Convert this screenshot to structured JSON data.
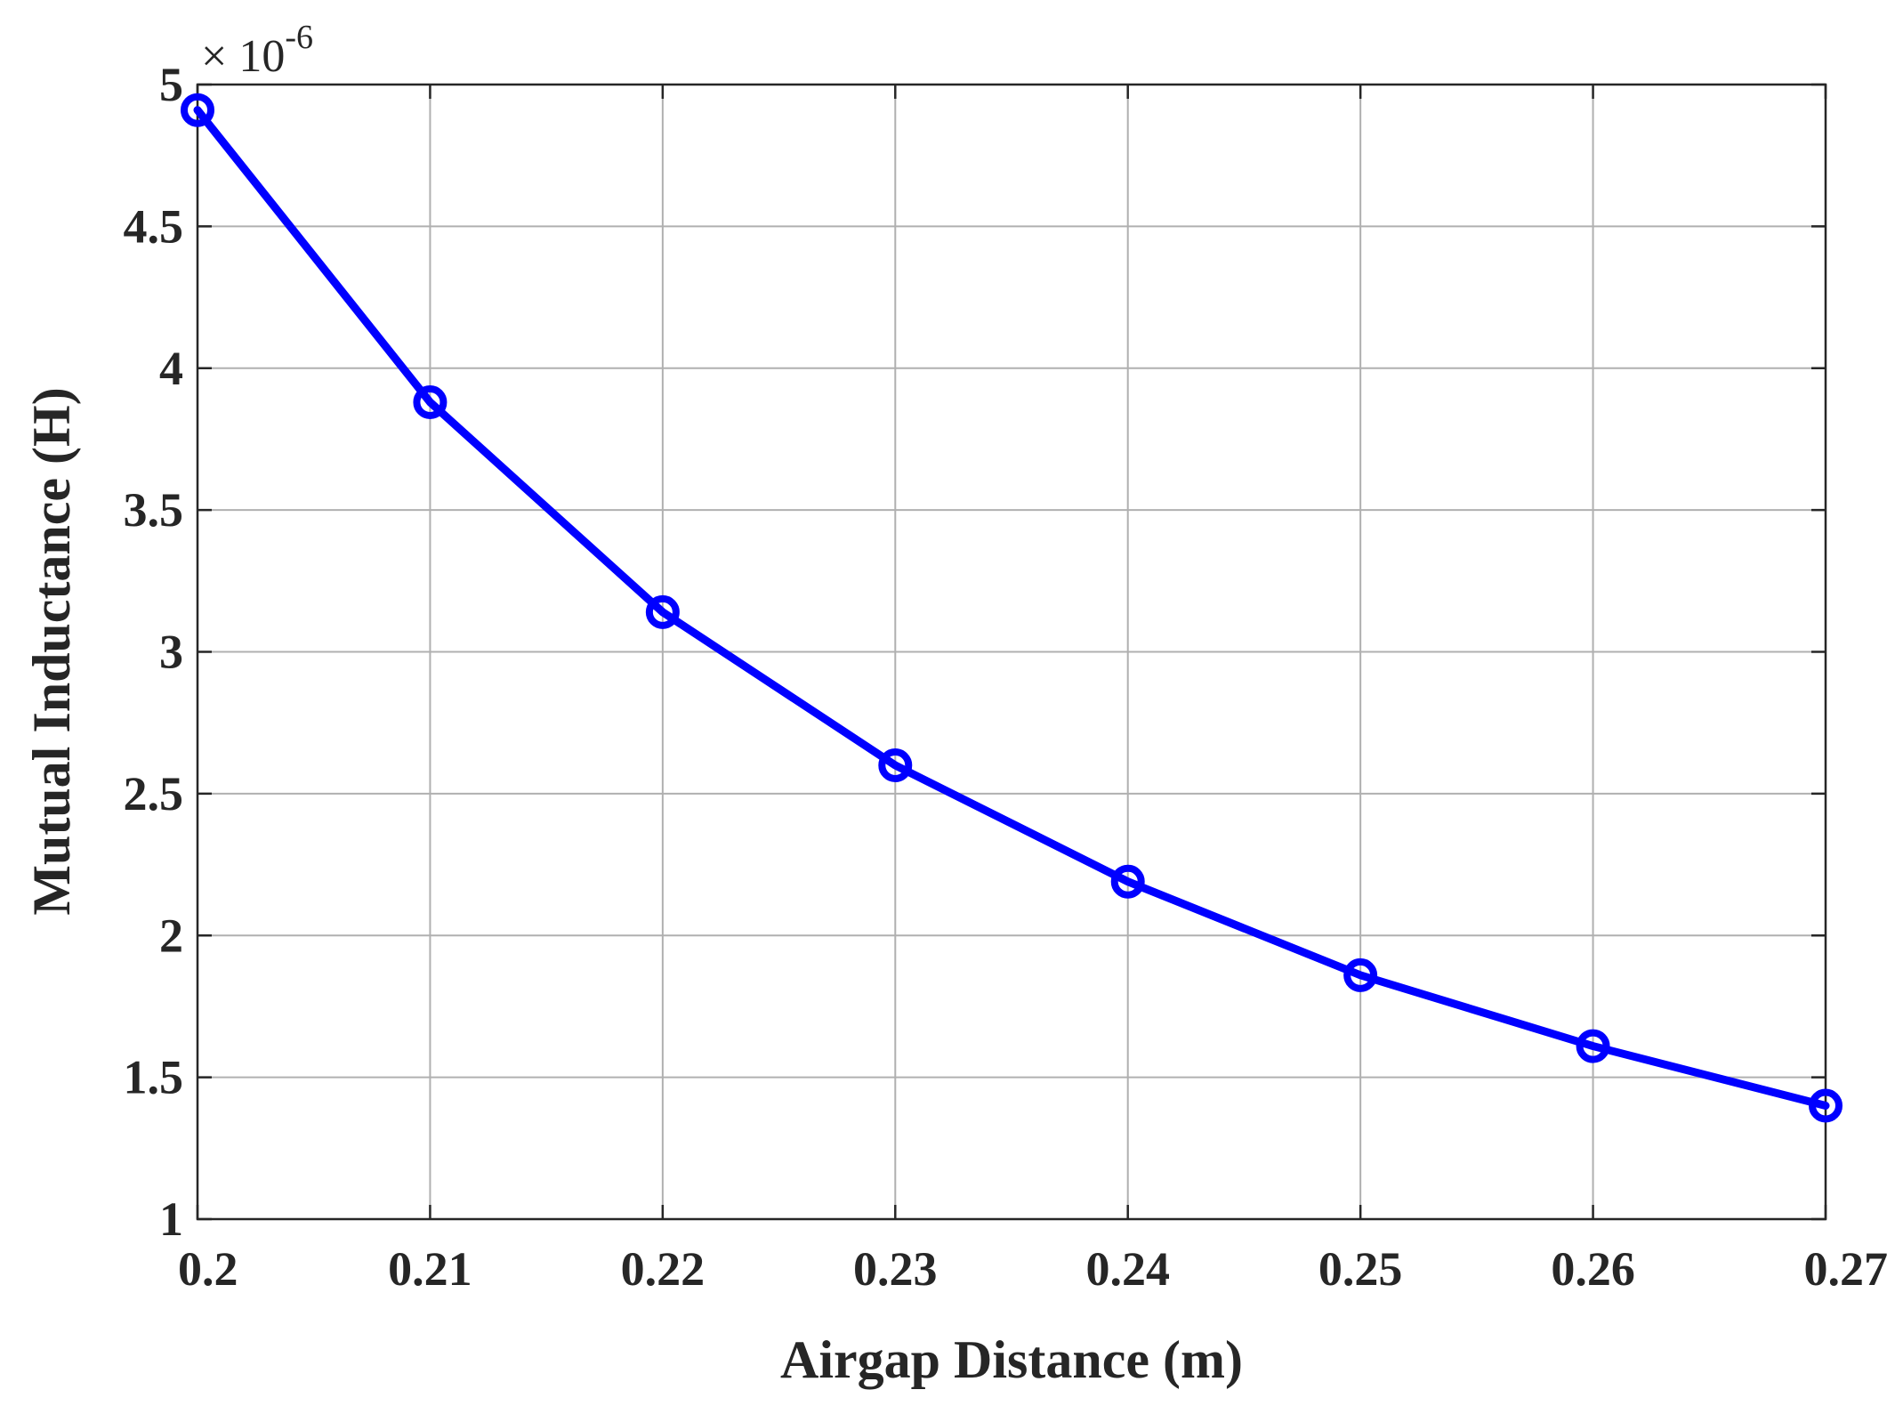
{
  "chart_data": {
    "type": "line",
    "title": "",
    "xlabel": "Airgap Distance (m)",
    "ylabel": "Mutual Inductance (H)",
    "y_exponent_base": "× 10",
    "y_exponent_power": "-6",
    "xlim": [
      0.2,
      0.27
    ],
    "ylim": [
      1,
      5
    ],
    "x_ticks": [
      0.2,
      0.21,
      0.22,
      0.23,
      0.24,
      0.25,
      0.26,
      0.27
    ],
    "x_tick_labels": [
      "0.2",
      "0.21",
      "0.22",
      "0.23",
      "0.24",
      "0.25",
      "0.26",
      "0.27"
    ],
    "y_ticks": [
      1,
      1.5,
      2,
      2.5,
      3,
      3.5,
      4,
      4.5,
      5
    ],
    "y_tick_labels": [
      "1",
      "1.5",
      "2",
      "2.5",
      "3",
      "3.5",
      "4",
      "4.5",
      "5"
    ],
    "grid": true,
    "legend": "none",
    "series": [
      {
        "color": "#0000ff",
        "marker": "circle",
        "x": [
          0.2,
          0.21,
          0.22,
          0.23,
          0.24,
          0.25,
          0.26,
          0.27
        ],
        "y": [
          4.91,
          3.88,
          3.14,
          2.6,
          2.19,
          1.86,
          1.61,
          1.4
        ]
      }
    ]
  }
}
